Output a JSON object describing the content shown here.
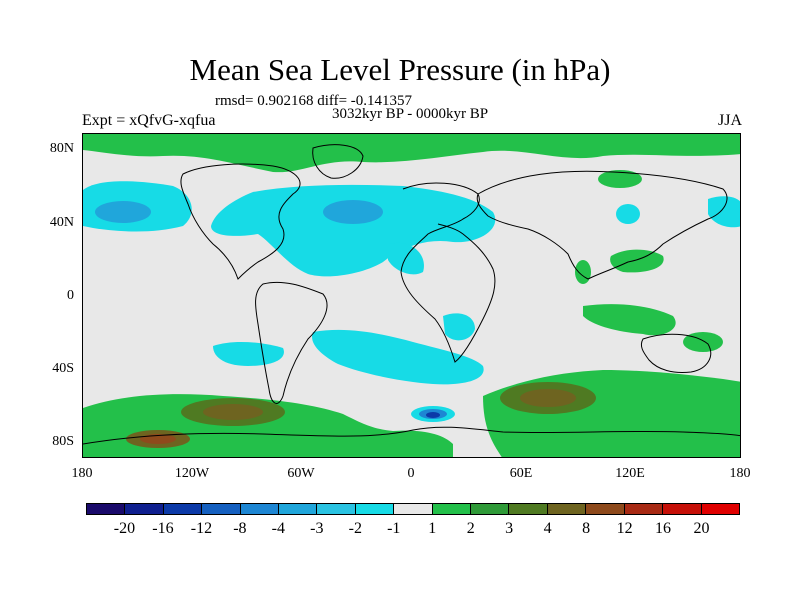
{
  "title": "Mean Sea Level Pressure (in hPa)",
  "stats_line": "rmsd= 0.902168 diff= -0.141357",
  "period_line": "3032kyr BP - 0000kyr BP",
  "experiment_label": "Expt = xQfvG-xqfua",
  "season_label": "JJA",
  "y_ticks": [
    "80N",
    "40N",
    "0",
    "40S",
    "80S"
  ],
  "x_ticks": [
    "180",
    "120W",
    "60W",
    "0",
    "60E",
    "120E",
    "180"
  ],
  "colorbar": {
    "labels": [
      "-20",
      "-16",
      "-12",
      "-8",
      "-4",
      "-3",
      "-2",
      "-1",
      "1",
      "2",
      "3",
      "4",
      "8",
      "12",
      "16",
      "20"
    ],
    "colors": [
      "#1a0a6b",
      "#0f1f8f",
      "#0c3aa8",
      "#1560c0",
      "#1d86d3",
      "#20a6db",
      "#2ac3e2",
      "#17dbe6",
      "#e8e8e8",
      "#23c04a",
      "#2f9a38",
      "#4f7a22",
      "#6e6420",
      "#8e4a1c",
      "#a82a14",
      "#c61008",
      "#e00000"
    ]
  },
  "legend_colors": {
    "neutral": "#e8e8e8",
    "cyan": "#17dbe6",
    "light_blue": "#2ac3e2",
    "blue": "#1d86d3",
    "dark_blue": "#0c3aa8",
    "green": "#23c04a",
    "dark_green": "#4f7a22",
    "brown": "#6e6420",
    "red_brown": "#8e4a1c"
  }
}
